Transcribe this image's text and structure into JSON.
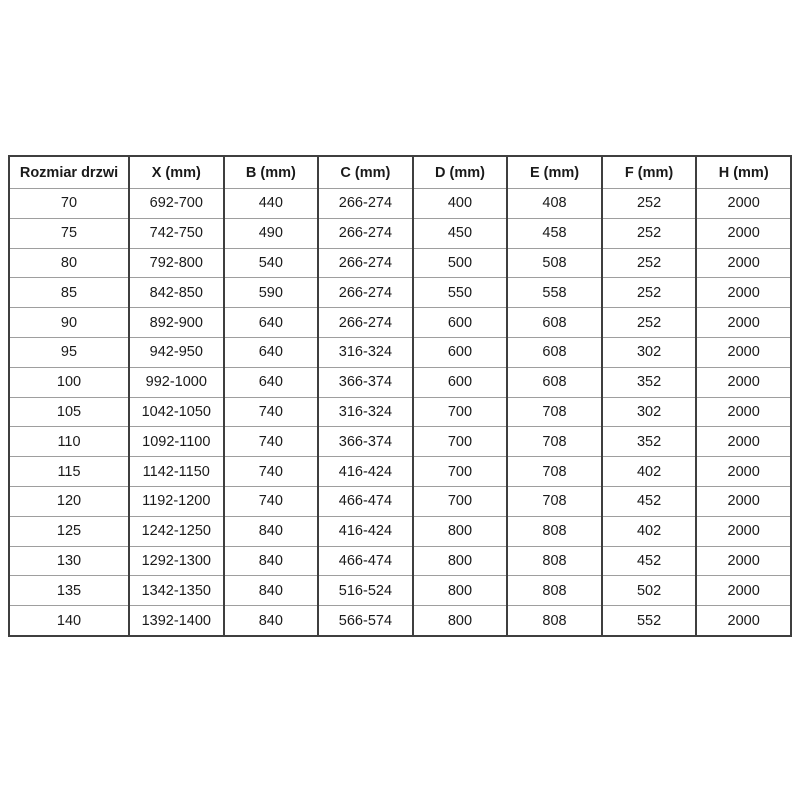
{
  "page": {
    "background_color": "#ffffff",
    "text_color": "#1a1a1a",
    "border_vertical_color": "#3f3f3f",
    "border_horizontal_color": "#9e9e9e"
  },
  "chart_data": {
    "type": "table",
    "title": "",
    "columns": [
      "Rozmiar drzwi",
      "X (mm)",
      "B (mm)",
      "C (mm)",
      "D (mm)",
      "E (mm)",
      "F (mm)",
      "H (mm)"
    ],
    "rows": [
      [
        "70",
        "692-700",
        "440",
        "266-274",
        "400",
        "408",
        "252",
        "2000"
      ],
      [
        "75",
        "742-750",
        "490",
        "266-274",
        "450",
        "458",
        "252",
        "2000"
      ],
      [
        "80",
        "792-800",
        "540",
        "266-274",
        "500",
        "508",
        "252",
        "2000"
      ],
      [
        "85",
        "842-850",
        "590",
        "266-274",
        "550",
        "558",
        "252",
        "2000"
      ],
      [
        "90",
        "892-900",
        "640",
        "266-274",
        "600",
        "608",
        "252",
        "2000"
      ],
      [
        "95",
        "942-950",
        "640",
        "316-324",
        "600",
        "608",
        "302",
        "2000"
      ],
      [
        "100",
        "992-1000",
        "640",
        "366-374",
        "600",
        "608",
        "352",
        "2000"
      ],
      [
        "105",
        "1042-1050",
        "740",
        "316-324",
        "700",
        "708",
        "302",
        "2000"
      ],
      [
        "110",
        "1092-1100",
        "740",
        "366-374",
        "700",
        "708",
        "352",
        "2000"
      ],
      [
        "115",
        "1142-1150",
        "740",
        "416-424",
        "700",
        "708",
        "402",
        "2000"
      ],
      [
        "120",
        "1192-1200",
        "740",
        "466-474",
        "700",
        "708",
        "452",
        "2000"
      ],
      [
        "125",
        "1242-1250",
        "840",
        "416-424",
        "800",
        "808",
        "402",
        "2000"
      ],
      [
        "130",
        "1292-1300",
        "840",
        "466-474",
        "800",
        "808",
        "452",
        "2000"
      ],
      [
        "135",
        "1342-1350",
        "840",
        "516-524",
        "800",
        "808",
        "502",
        "2000"
      ],
      [
        "140",
        "1392-1400",
        "840",
        "566-574",
        "800",
        "808",
        "552",
        "2000"
      ]
    ]
  }
}
